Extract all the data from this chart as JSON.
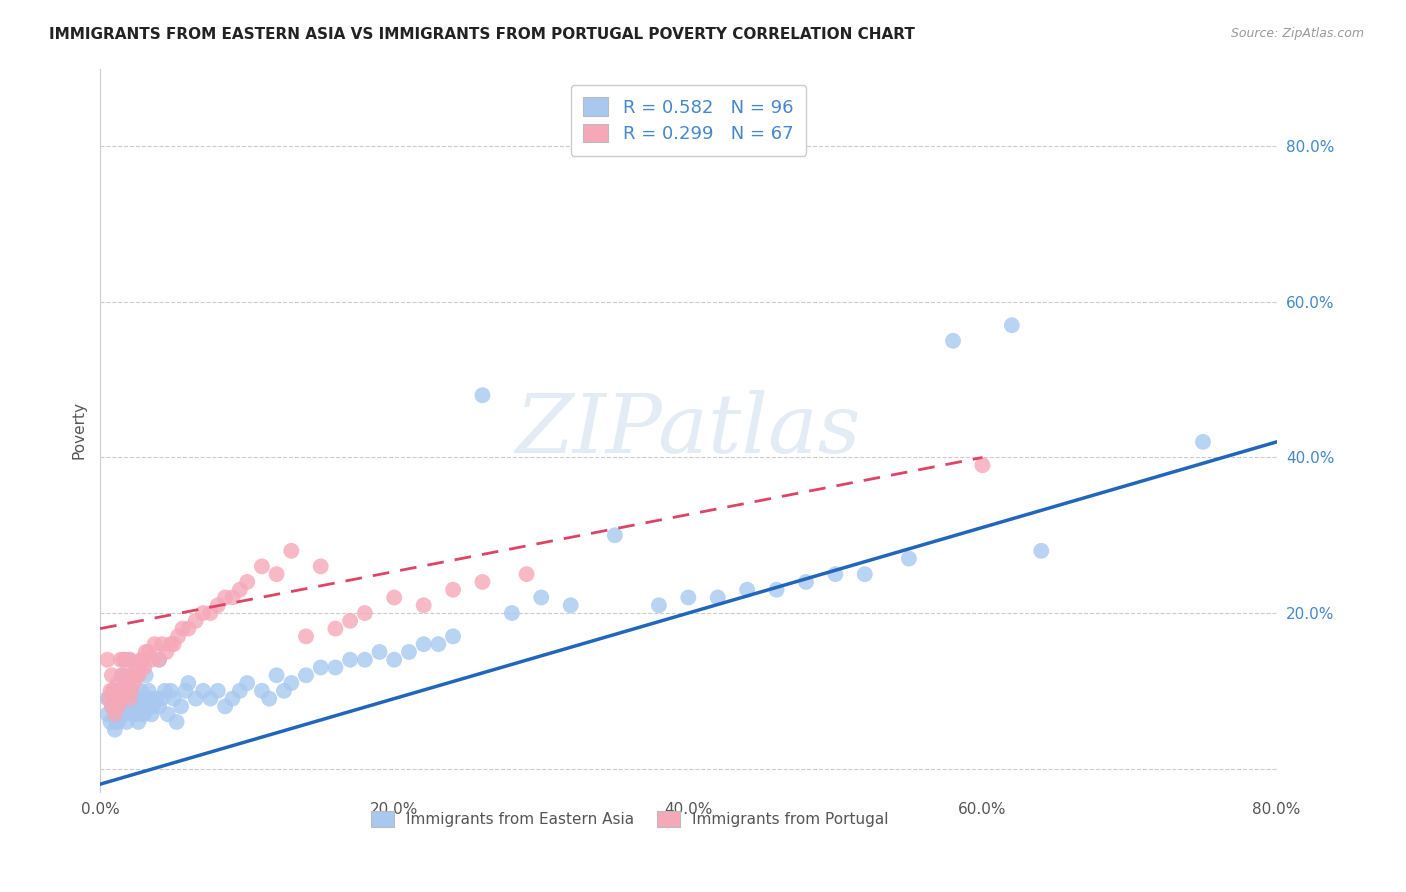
{
  "title": "IMMIGRANTS FROM EASTERN ASIA VS IMMIGRANTS FROM PORTUGAL POVERTY CORRELATION CHART",
  "source": "Source: ZipAtlas.com",
  "ylabel": "Poverty",
  "xlim": [
    0.0,
    0.8
  ],
  "ylim": [
    -0.03,
    0.9
  ],
  "x_ticks": [
    0.0,
    0.2,
    0.4,
    0.6,
    0.8
  ],
  "x_tick_labels": [
    "0.0%",
    "20.0%",
    "40.0%",
    "60.0%",
    "80.0%"
  ],
  "y_ticks": [
    0.0,
    0.2,
    0.4,
    0.6,
    0.8
  ],
  "y_tick_labels": [
    "",
    "20.0%",
    "40.0%",
    "60.0%",
    "80.0%"
  ],
  "watermark": "ZIPatlas",
  "blue_R": 0.582,
  "blue_N": 96,
  "pink_R": 0.299,
  "pink_N": 67,
  "blue_color": "#a8c8f0",
  "pink_color": "#f5a8b8",
  "line_blue": "#2266bb",
  "line_pink": "#dd4466",
  "legend_label_blue": "Immigrants from Eastern Asia",
  "legend_label_pink": "Immigrants from Portugal",
  "blue_x": [
    0.005,
    0.005,
    0.007,
    0.008,
    0.009,
    0.01,
    0.01,
    0.01,
    0.011,
    0.012,
    0.012,
    0.013,
    0.013,
    0.014,
    0.015,
    0.015,
    0.015,
    0.016,
    0.016,
    0.017,
    0.018,
    0.018,
    0.019,
    0.02,
    0.02,
    0.021,
    0.022,
    0.023,
    0.024,
    0.025,
    0.026,
    0.027,
    0.028,
    0.029,
    0.03,
    0.03,
    0.031,
    0.032,
    0.033,
    0.034,
    0.035,
    0.036,
    0.038,
    0.04,
    0.04,
    0.042,
    0.044,
    0.046,
    0.048,
    0.05,
    0.052,
    0.055,
    0.058,
    0.06,
    0.065,
    0.07,
    0.075,
    0.08,
    0.085,
    0.09,
    0.095,
    0.1,
    0.11,
    0.115,
    0.12,
    0.125,
    0.13,
    0.14,
    0.15,
    0.16,
    0.17,
    0.18,
    0.19,
    0.2,
    0.21,
    0.22,
    0.23,
    0.24,
    0.26,
    0.28,
    0.3,
    0.32,
    0.35,
    0.38,
    0.4,
    0.42,
    0.44,
    0.46,
    0.48,
    0.5,
    0.52,
    0.55,
    0.58,
    0.62,
    0.64,
    0.75
  ],
  "blue_y": [
    0.07,
    0.09,
    0.06,
    0.08,
    0.1,
    0.05,
    0.07,
    0.1,
    0.06,
    0.08,
    0.06,
    0.07,
    0.1,
    0.07,
    0.07,
    0.09,
    0.12,
    0.08,
    0.1,
    0.07,
    0.08,
    0.06,
    0.08,
    0.08,
    0.14,
    0.09,
    0.1,
    0.07,
    0.07,
    0.09,
    0.06,
    0.08,
    0.1,
    0.07,
    0.07,
    0.09,
    0.12,
    0.08,
    0.1,
    0.09,
    0.07,
    0.08,
    0.09,
    0.08,
    0.14,
    0.09,
    0.1,
    0.07,
    0.1,
    0.09,
    0.06,
    0.08,
    0.1,
    0.11,
    0.09,
    0.1,
    0.09,
    0.1,
    0.08,
    0.09,
    0.1,
    0.11,
    0.1,
    0.09,
    0.12,
    0.1,
    0.11,
    0.12,
    0.13,
    0.13,
    0.14,
    0.14,
    0.15,
    0.14,
    0.15,
    0.16,
    0.16,
    0.17,
    0.48,
    0.2,
    0.22,
    0.21,
    0.3,
    0.21,
    0.22,
    0.22,
    0.23,
    0.23,
    0.24,
    0.25,
    0.25,
    0.27,
    0.55,
    0.57,
    0.28,
    0.42
  ],
  "pink_x": [
    0.005,
    0.006,
    0.007,
    0.008,
    0.008,
    0.009,
    0.01,
    0.01,
    0.011,
    0.012,
    0.012,
    0.013,
    0.014,
    0.014,
    0.015,
    0.015,
    0.016,
    0.017,
    0.017,
    0.018,
    0.019,
    0.02,
    0.02,
    0.021,
    0.022,
    0.023,
    0.024,
    0.025,
    0.026,
    0.027,
    0.028,
    0.029,
    0.03,
    0.031,
    0.033,
    0.035,
    0.037,
    0.04,
    0.042,
    0.045,
    0.048,
    0.05,
    0.053,
    0.056,
    0.06,
    0.065,
    0.07,
    0.075,
    0.08,
    0.085,
    0.09,
    0.095,
    0.1,
    0.11,
    0.12,
    0.13,
    0.14,
    0.15,
    0.16,
    0.17,
    0.18,
    0.2,
    0.22,
    0.24,
    0.26,
    0.29,
    0.6
  ],
  "pink_y": [
    0.14,
    0.09,
    0.1,
    0.08,
    0.12,
    0.1,
    0.07,
    0.1,
    0.08,
    0.08,
    0.11,
    0.09,
    0.1,
    0.14,
    0.09,
    0.12,
    0.14,
    0.1,
    0.14,
    0.11,
    0.12,
    0.09,
    0.14,
    0.1,
    0.12,
    0.11,
    0.12,
    0.13,
    0.12,
    0.13,
    0.14,
    0.14,
    0.13,
    0.15,
    0.15,
    0.14,
    0.16,
    0.14,
    0.16,
    0.15,
    0.16,
    0.16,
    0.17,
    0.18,
    0.18,
    0.19,
    0.2,
    0.2,
    0.21,
    0.22,
    0.22,
    0.23,
    0.24,
    0.26,
    0.25,
    0.28,
    0.17,
    0.26,
    0.18,
    0.19,
    0.2,
    0.22,
    0.21,
    0.23,
    0.24,
    0.25,
    0.39
  ]
}
